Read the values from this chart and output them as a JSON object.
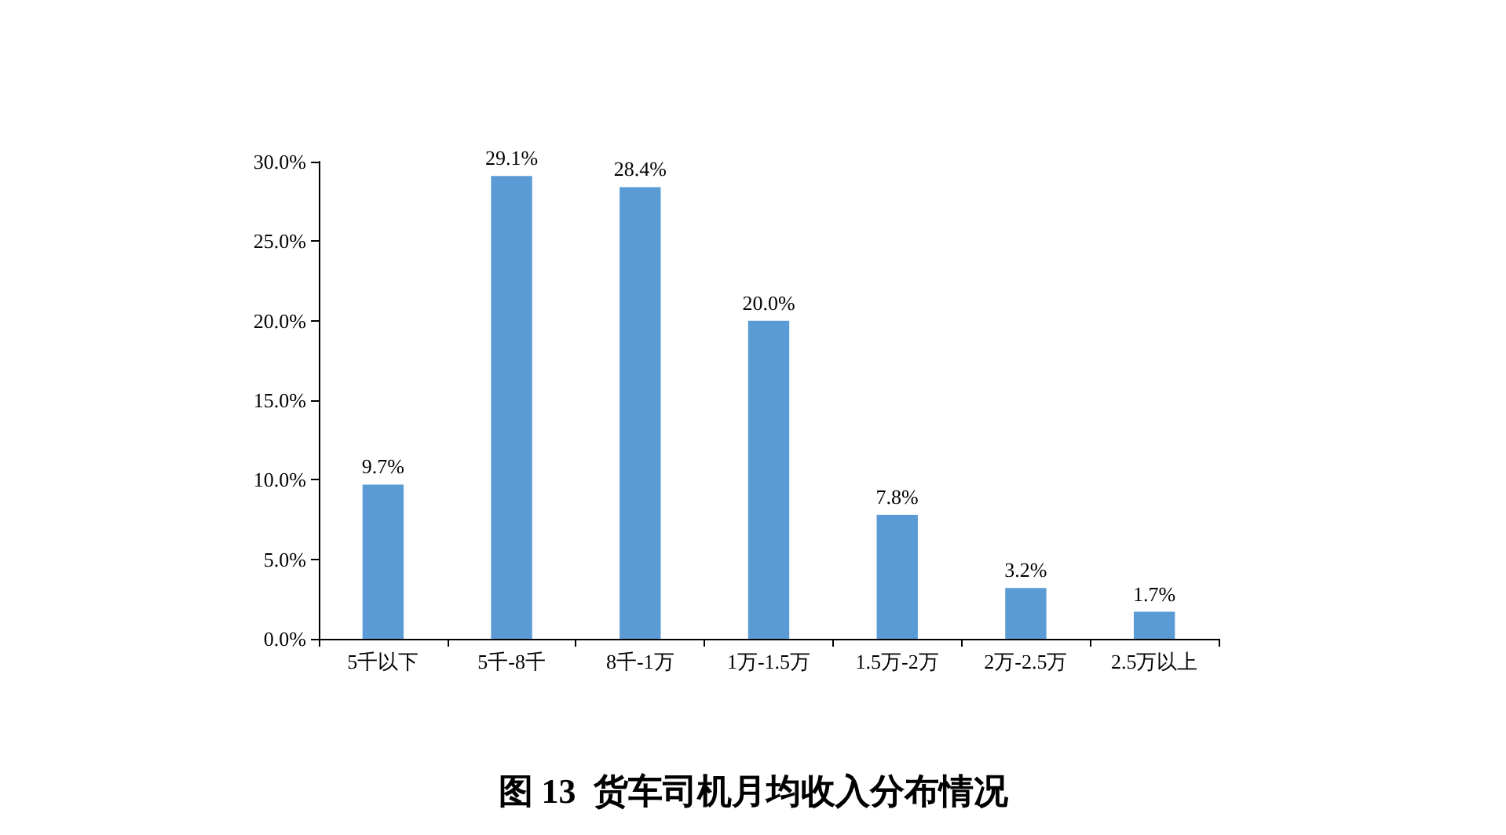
{
  "chart_data": {
    "type": "bar",
    "title": "图 13  货车司机月均收入分布情况",
    "categories": [
      "5千以下",
      "5千-8千",
      "8千-1万",
      "1万-1.5万",
      "1.5万-2万",
      "2万-2.5万",
      "2.5万以上"
    ],
    "values": [
      9.7,
      29.1,
      28.4,
      20.0,
      7.8,
      3.2,
      1.7
    ],
    "value_labels": [
      "9.7%",
      "29.1%",
      "28.4%",
      "20.0%",
      "7.8%",
      "3.2%",
      "1.7%"
    ],
    "color": "#5b9bd5",
    "ylim": [
      0,
      30
    ],
    "yticks": [
      {
        "value": 0,
        "label": "0.0%"
      },
      {
        "value": 5,
        "label": "5.0%"
      },
      {
        "value": 10,
        "label": "10.0%"
      },
      {
        "value": 15,
        "label": "15.0%"
      },
      {
        "value": 20,
        "label": "20.0%"
      },
      {
        "value": 25,
        "label": "25.0%"
      },
      {
        "value": 30,
        "label": "30.0%"
      }
    ],
    "grid": false
  }
}
